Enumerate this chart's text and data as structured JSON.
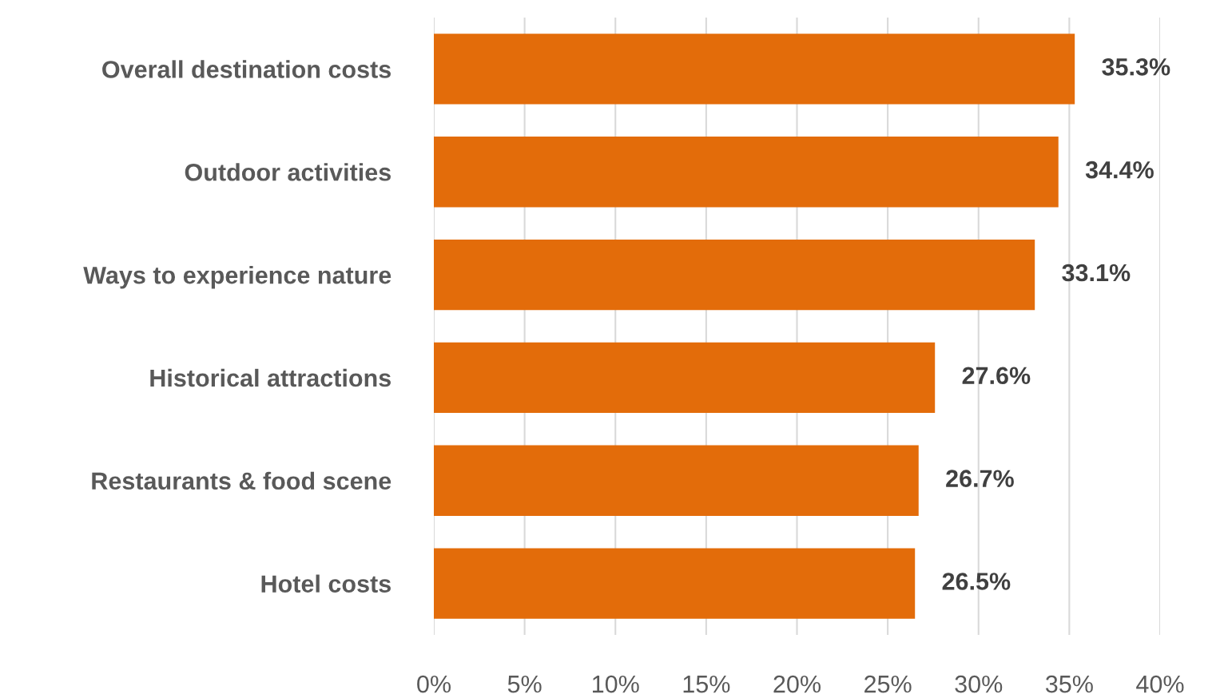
{
  "chart_data": {
    "type": "bar",
    "orientation": "horizontal",
    "categories": [
      "Overall destination costs",
      "Outdoor activities",
      "Ways to experience nature",
      "Historical attractions",
      "Restaurants & food scene",
      "Hotel costs"
    ],
    "values": [
      35.3,
      34.4,
      33.1,
      27.6,
      26.7,
      26.5
    ],
    "value_labels": [
      "35.3%",
      "34.4%",
      "33.1%",
      "27.6%",
      "26.7%",
      "26.5%"
    ],
    "color": "#e36c0a",
    "xlim": [
      0,
      40
    ],
    "xticks": [
      {
        "value": 0,
        "label": "0%"
      },
      {
        "value": 5,
        "label": "5%"
      },
      {
        "value": 10,
        "label": "10%"
      },
      {
        "value": 15,
        "label": "15%"
      },
      {
        "value": 20,
        "label": "20%"
      },
      {
        "value": 25,
        "label": "25%"
      },
      {
        "value": 30,
        "label": "30%"
      },
      {
        "value": 35,
        "label": "35%"
      },
      {
        "value": 40,
        "label": "40%"
      }
    ],
    "grid": "x"
  }
}
